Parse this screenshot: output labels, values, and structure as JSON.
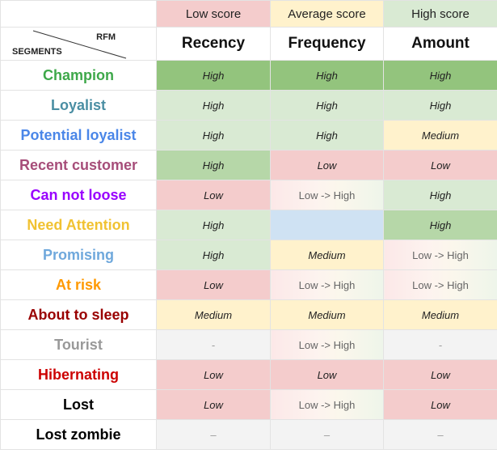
{
  "legend": {
    "low": "Low score",
    "average": "Average score",
    "high": "High score"
  },
  "header": {
    "rfm": "RFM",
    "segments": "SEGMENTS",
    "recency": "Recency",
    "frequency": "Frequency",
    "amount": "Amount"
  },
  "colors": {
    "low": "#f4cccc",
    "average": "#fff2cc",
    "high": "#d9ead3",
    "strong_high": "#93c47d",
    "blue": "#cfe2f3",
    "grey": "#f3f3f3"
  },
  "segments": [
    {
      "name": "Champion",
      "color": "#3ea84a",
      "recency": "High",
      "frequency": "High",
      "amount": "High"
    },
    {
      "name": "Loyalist",
      "color": "#4a8ea3",
      "recency": "High",
      "frequency": "High",
      "amount": "High"
    },
    {
      "name": "Potential loyalist",
      "color": "#4a86e8",
      "recency": "High",
      "frequency": "High",
      "amount": "Medium"
    },
    {
      "name": "Recent customer",
      "color": "#a64d79",
      "recency": "High",
      "frequency": "Low",
      "amount": "Low"
    },
    {
      "name": "Can not loose",
      "color": "#9900ff",
      "recency": "Low",
      "frequency": "Low -> High",
      "amount": "High"
    },
    {
      "name": "Need Attention",
      "color": "#f1c232",
      "recency": "High",
      "frequency": "",
      "amount": "High"
    },
    {
      "name": "Promising",
      "color": "#6fa8dc",
      "recency": "High",
      "frequency": "Medium",
      "amount": "Low -> High"
    },
    {
      "name": "At risk",
      "color": "#ff9900",
      "recency": "Low",
      "frequency": "Low -> High",
      "amount": "Low -> High"
    },
    {
      "name": "About to sleep",
      "color": "#990000",
      "recency": "Medium",
      "frequency": "Medium",
      "amount": "Medium"
    },
    {
      "name": "Tourist",
      "color": "#999999",
      "recency": "-",
      "frequency": "Low -> High",
      "amount": "-"
    },
    {
      "name": "Hibernating",
      "color": "#cc0000",
      "recency": "Low",
      "frequency": "Low",
      "amount": "Low"
    },
    {
      "name": "Lost",
      "color": "#000000",
      "recency": "Low",
      "frequency": "Low -> High",
      "amount": "Low"
    },
    {
      "name": "Lost zombie",
      "color": "#000000",
      "recency": "–",
      "frequency": "–",
      "amount": "–"
    }
  ]
}
